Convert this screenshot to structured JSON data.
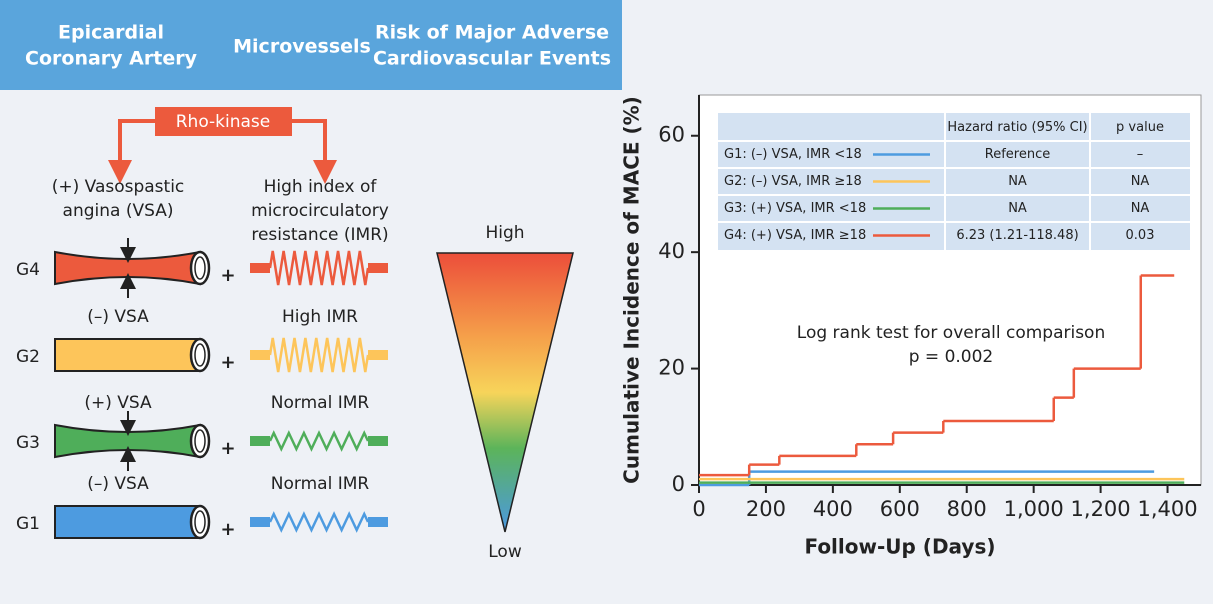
{
  "header": {
    "columns": [
      [
        "Epicardial",
        "Coronary Artery"
      ],
      [
        "Microvessels"
      ],
      [
        "Risk of Major Adverse",
        "Cardiovascular Events"
      ]
    ]
  },
  "diagram": {
    "mediator": "Rho-kinase",
    "epicardial_label": [
      "(+) Vasospastic",
      "angina (VSA)"
    ],
    "microvessel_label": [
      "High index of",
      "microcirculatory",
      "resistance (IMR)"
    ],
    "groups": [
      {
        "name": "G4"
      },
      {
        "name": "G2",
        "vessel": "(–) VSA",
        "imr": "High IMR"
      },
      {
        "name": "G3",
        "vessel": "(+) VSA",
        "imr": "Normal IMR"
      },
      {
        "name": "G1",
        "vessel": "(–) VSA",
        "imr": "Normal IMR"
      }
    ],
    "risk_scale": {
      "high": "High",
      "low": "Low"
    }
  },
  "chart_data": {
    "type": "line",
    "step": true,
    "xlabel": "Follow-Up (Days)",
    "ylabel": "Cumulative Incidence of MACE (%)",
    "xlim": [
      0,
      1500
    ],
    "ylim": [
      0,
      67
    ],
    "xticks": [
      0,
      200,
      400,
      600,
      800,
      {
        "value": 1000,
        "label": "1,000"
      },
      {
        "value": 1200,
        "label": "1,200"
      },
      {
        "value": 1400,
        "label": "1,400"
      }
    ],
    "yticks": [
      0,
      20,
      40,
      60
    ],
    "table_columns": [
      "Hazard ratio (95% CI)",
      "p value"
    ],
    "series": [
      {
        "name": "G1: (–) VSA, IMR <18",
        "color": "#4d9be0",
        "x": [
          0,
          150,
          1360
        ],
        "values": [
          0,
          2.3,
          2.3
        ],
        "hazard_ratio": "Reference",
        "p_value": "–"
      },
      {
        "name": "G2: (–) VSA, IMR ≥18",
        "color": "#fdc55a",
        "x": [
          0,
          1450
        ],
        "values": [
          1,
          1
        ],
        "hazard_ratio": "NA",
        "p_value": "NA"
      },
      {
        "name": "G3: (+) VSA, IMR <18",
        "color": "#4fae5a",
        "x": [
          0,
          1450
        ],
        "values": [
          0.4,
          0.4
        ],
        "hazard_ratio": "NA",
        "p_value": "NA"
      },
      {
        "name": "G4: (+) VSA, IMR ≥18",
        "color": "#ec5a3d",
        "x": [
          0,
          150,
          240,
          470,
          580,
          730,
          1060,
          1120,
          1320,
          1420
        ],
        "values": [
          1.7,
          3.5,
          5,
          7,
          9,
          11,
          15,
          20,
          36,
          36
        ],
        "hazard_ratio": "6.23 (1.21-118.48)",
        "p_value": "0.03"
      }
    ],
    "annotations": [
      "Log rank test for overall comparison",
      "p = 0.002"
    ]
  }
}
